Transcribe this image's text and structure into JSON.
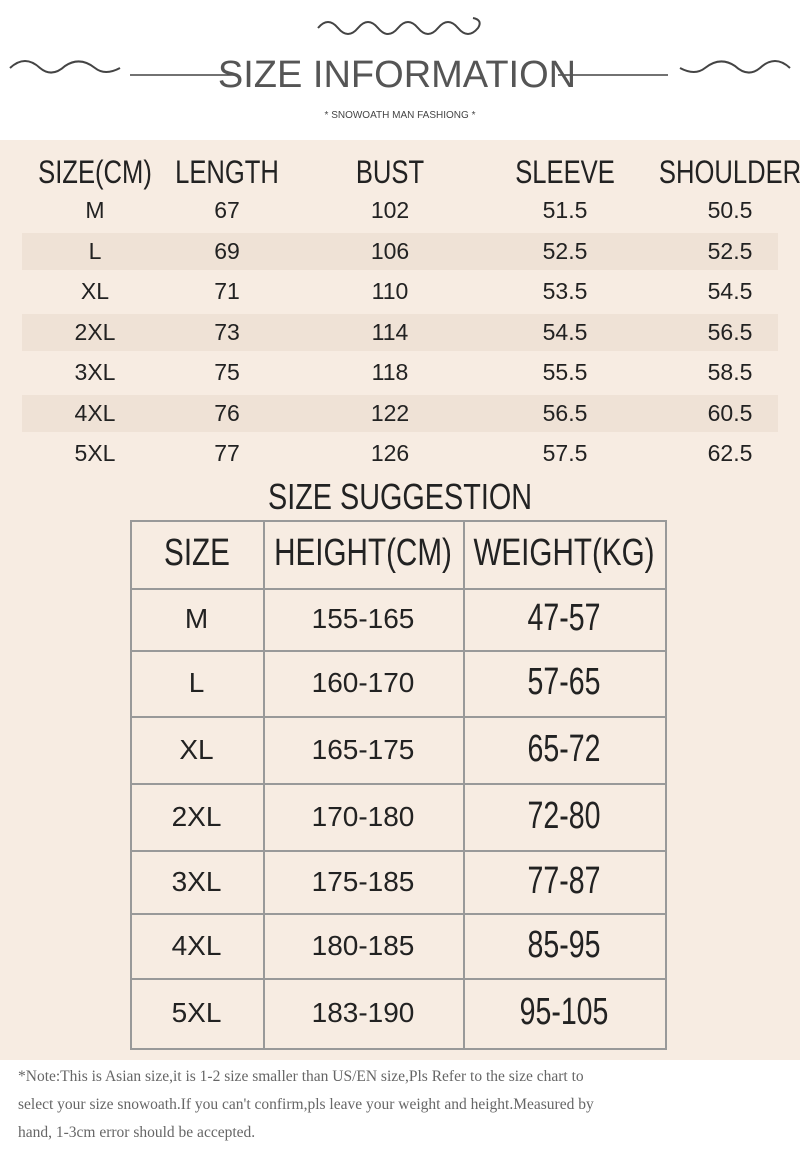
{
  "header": {
    "title": "SIZE INFORMATION",
    "subtitle": "* SNOWOATH MAN FASHIONG *"
  },
  "size_table": {
    "columns": [
      "SIZE(CM)",
      "LENGTH",
      "BUST",
      "SLEEVE",
      "SHOULDER"
    ],
    "rows": [
      [
        "M",
        "67",
        "102",
        "51.5",
        "50.5"
      ],
      [
        "L",
        "69",
        "106",
        "52.5",
        "52.5"
      ],
      [
        "XL",
        "71",
        "110",
        "53.5",
        "54.5"
      ],
      [
        "2XL",
        "73",
        "114",
        "54.5",
        "56.5"
      ],
      [
        "3XL",
        "75",
        "118",
        "55.5",
        "58.5"
      ],
      [
        "4XL",
        "76",
        "122",
        "56.5",
        "60.5"
      ],
      [
        "5XL",
        "77",
        "126",
        "57.5",
        "62.5"
      ]
    ]
  },
  "suggestion_table": {
    "title": "SIZE SUGGESTION",
    "columns": [
      "SIZE",
      "HEIGHT(CM)",
      "WEIGHT(KG)"
    ],
    "rows": [
      [
        "M",
        "155-165",
        "47-57"
      ],
      [
        "L",
        "160-170",
        "57-65"
      ],
      [
        "XL",
        "165-175",
        "65-72"
      ],
      [
        "2XL",
        "170-180",
        "72-80"
      ],
      [
        "3XL",
        "175-185",
        "77-87"
      ],
      [
        "4XL",
        "180-185",
        "85-95"
      ],
      [
        "5XL",
        "183-190",
        "95-105"
      ]
    ]
  },
  "note": {
    "lines": [
      "*Note:This is Asian size,it is 1-2 size smaller than US/EN size,Pls Refer to the size chart to",
      "select your size snowoath.If you can't confirm,pls leave your weight and height.Measured by",
      "hand, 1-3cm error should be accepted."
    ]
  }
}
